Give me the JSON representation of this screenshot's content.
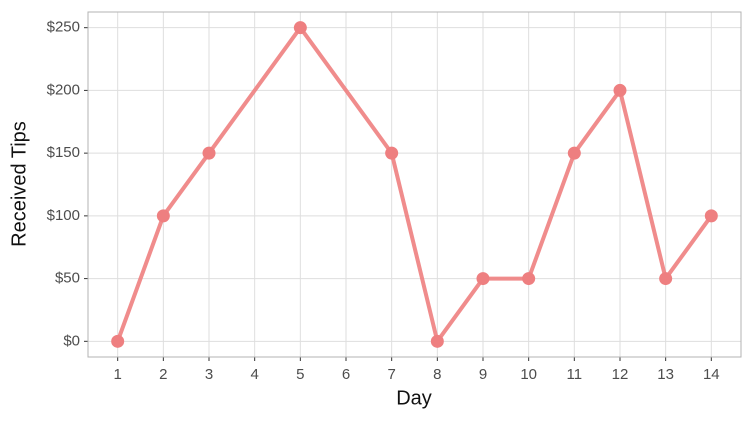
{
  "chart_data": {
    "type": "line",
    "x_label": "Day",
    "y_label": "Received Tips",
    "x": [
      1,
      2,
      3,
      5,
      7,
      8,
      9,
      10,
      11,
      12,
      13,
      14
    ],
    "series": [
      {
        "name": "Received Tips",
        "color": "#ee7f80",
        "values": [
          0,
          100,
          150,
          250,
          150,
          0,
          50,
          50,
          150,
          200,
          50,
          100
        ]
      }
    ],
    "xlim": [
      0.35,
      14.65
    ],
    "xticks": [
      1,
      2,
      3,
      4,
      5,
      6,
      7,
      8,
      9,
      10,
      11,
      12,
      13,
      14
    ],
    "ylim": [
      -12.5,
      262.5
    ],
    "yticks": [
      {
        "value": 0,
        "label": "$0"
      },
      {
        "value": 50,
        "label": "$50"
      },
      {
        "value": 100,
        "label": "$100"
      },
      {
        "value": 150,
        "label": "$150"
      },
      {
        "value": 200,
        "label": "$200"
      },
      {
        "value": 250,
        "label": "$250"
      }
    ],
    "grid": true
  }
}
